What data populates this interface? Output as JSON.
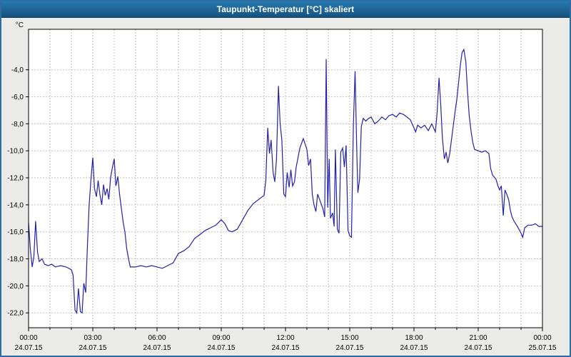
{
  "window": {
    "title": "Taupunkt-Temperatur [°C] skaliert"
  },
  "chart_data": {
    "type": "line",
    "title": "Taupunkt-Temperatur [°C] skaliert",
    "xlabel": "",
    "ylabel": "°C",
    "grid": true,
    "legend": "none",
    "ylim": [
      -23.1,
      -1.0
    ],
    "xlim_hours": [
      0,
      24
    ],
    "colors": {
      "line": "#2222aa",
      "grid": "#c3c3c3",
      "axis": "#000000",
      "text": "#000000",
      "plot_bg": "#ffffff"
    },
    "y_ticks": [
      {
        "value": -4,
        "label": "-4,0"
      },
      {
        "value": -6,
        "label": "-6,0"
      },
      {
        "value": -8,
        "label": "-8,0"
      },
      {
        "value": -10,
        "label": "-10,0"
      },
      {
        "value": -12,
        "label": "-12,0"
      },
      {
        "value": -14,
        "label": "-14,0"
      },
      {
        "value": -16,
        "label": "-16,0"
      },
      {
        "value": -18,
        "label": "-18,0"
      },
      {
        "value": -20,
        "label": "-20,0"
      },
      {
        "value": -22,
        "label": "-22,0"
      }
    ],
    "x_ticks": [
      {
        "hour": 0,
        "time": "00:00",
        "date": "24.07.15"
      },
      {
        "hour": 3,
        "time": "03:00",
        "date": "24.07.15"
      },
      {
        "hour": 6,
        "time": "06:00",
        "date": "24.07.15"
      },
      {
        "hour": 9,
        "time": "09:00",
        "date": "24.07.15"
      },
      {
        "hour": 12,
        "time": "12:00",
        "date": "24.07.15"
      },
      {
        "hour": 15,
        "time": "15:00",
        "date": "24.07.15"
      },
      {
        "hour": 18,
        "time": "18:00",
        "date": "24.07.15"
      },
      {
        "hour": 21,
        "time": "21:00",
        "date": "24.07.15"
      },
      {
        "hour": 24,
        "time": "00:00",
        "date": "25.07.15"
      }
    ],
    "series": [
      {
        "name": "Taupunkt-Temperatur",
        "points": [
          [
            0.0,
            -15.3
          ],
          [
            0.08,
            -17.2
          ],
          [
            0.17,
            -18.6
          ],
          [
            0.25,
            -17.8
          ],
          [
            0.33,
            -15.2
          ],
          [
            0.42,
            -17.5
          ],
          [
            0.5,
            -18.2
          ],
          [
            0.63,
            -18.0
          ],
          [
            0.75,
            -18.4
          ],
          [
            0.92,
            -18.5
          ],
          [
            1.08,
            -18.4
          ],
          [
            1.25,
            -18.6
          ],
          [
            1.5,
            -18.5
          ],
          [
            1.75,
            -18.6
          ],
          [
            2.0,
            -18.8
          ],
          [
            2.08,
            -19.2
          ],
          [
            2.17,
            -21.8
          ],
          [
            2.25,
            -22.0
          ],
          [
            2.33,
            -20.2
          ],
          [
            2.42,
            -21.9
          ],
          [
            2.5,
            -22.0
          ],
          [
            2.58,
            -19.8
          ],
          [
            2.67,
            -20.5
          ],
          [
            2.75,
            -17.0
          ],
          [
            2.83,
            -14.0
          ],
          [
            2.92,
            -12.0
          ],
          [
            3.0,
            -10.5
          ],
          [
            3.08,
            -12.8
          ],
          [
            3.17,
            -13.4
          ],
          [
            3.25,
            -12.2
          ],
          [
            3.33,
            -13.2
          ],
          [
            3.42,
            -14.0
          ],
          [
            3.5,
            -12.5
          ],
          [
            3.58,
            -13.3
          ],
          [
            3.67,
            -12.8
          ],
          [
            3.75,
            -13.6
          ],
          [
            3.83,
            -12.0
          ],
          [
            3.92,
            -11.2
          ],
          [
            4.0,
            -10.6
          ],
          [
            4.08,
            -12.6
          ],
          [
            4.17,
            -11.9
          ],
          [
            4.25,
            -13.2
          ],
          [
            4.33,
            -14.2
          ],
          [
            4.42,
            -15.3
          ],
          [
            4.5,
            -16.0
          ],
          [
            4.58,
            -17.2
          ],
          [
            4.67,
            -18.0
          ],
          [
            4.75,
            -18.6
          ],
          [
            5.0,
            -18.6
          ],
          [
            5.25,
            -18.5
          ],
          [
            5.5,
            -18.6
          ],
          [
            5.75,
            -18.5
          ],
          [
            6.0,
            -18.6
          ],
          [
            6.25,
            -18.7
          ],
          [
            6.5,
            -18.5
          ],
          [
            6.75,
            -18.3
          ],
          [
            7.0,
            -17.6
          ],
          [
            7.25,
            -17.4
          ],
          [
            7.5,
            -17.1
          ],
          [
            7.75,
            -16.5
          ],
          [
            8.0,
            -16.2
          ],
          [
            8.25,
            -15.9
          ],
          [
            8.5,
            -15.7
          ],
          [
            8.75,
            -15.5
          ],
          [
            9.0,
            -15.1
          ],
          [
            9.17,
            -15.4
          ],
          [
            9.33,
            -15.9
          ],
          [
            9.5,
            -16.0
          ],
          [
            9.75,
            -15.8
          ],
          [
            10.0,
            -15.1
          ],
          [
            10.25,
            -14.4
          ],
          [
            10.5,
            -13.9
          ],
          [
            10.75,
            -13.6
          ],
          [
            11.0,
            -13.3
          ],
          [
            11.08,
            -12.2
          ],
          [
            11.17,
            -8.3
          ],
          [
            11.25,
            -10.2
          ],
          [
            11.33,
            -9.2
          ],
          [
            11.42,
            -11.6
          ],
          [
            11.5,
            -12.3
          ],
          [
            11.58,
            -10.6
          ],
          [
            11.67,
            -5.2
          ],
          [
            11.75,
            -8.0
          ],
          [
            11.83,
            -9.2
          ],
          [
            11.92,
            -13.2
          ],
          [
            12.0,
            -13.4
          ],
          [
            12.08,
            -11.6
          ],
          [
            12.17,
            -12.7
          ],
          [
            12.25,
            -11.4
          ],
          [
            12.33,
            -12.6
          ],
          [
            12.42,
            -12.3
          ],
          [
            12.5,
            -11.2
          ],
          [
            12.67,
            -9.8
          ],
          [
            12.83,
            -9.1
          ],
          [
            13.0,
            -9.9
          ],
          [
            13.08,
            -11.1
          ],
          [
            13.17,
            -10.6
          ],
          [
            13.25,
            -13.2
          ],
          [
            13.33,
            -14.0
          ],
          [
            13.42,
            -14.5
          ],
          [
            13.5,
            -13.2
          ],
          [
            13.75,
            -14.3
          ],
          [
            13.83,
            -14.9
          ],
          [
            13.9,
            -3.2
          ],
          [
            13.97,
            -14.2
          ],
          [
            14.04,
            -10.6
          ],
          [
            14.1,
            -15.0
          ],
          [
            14.2,
            -14.6
          ],
          [
            14.27,
            -15.6
          ],
          [
            14.33,
            -9.9
          ],
          [
            14.42,
            -15.8
          ],
          [
            14.5,
            -16.1
          ],
          [
            14.58,
            -10.1
          ],
          [
            14.67,
            -9.8
          ],
          [
            14.75,
            -11.2
          ],
          [
            14.83,
            -9.6
          ],
          [
            14.92,
            -15.9
          ],
          [
            15.0,
            -16.3
          ],
          [
            15.08,
            -16.4
          ],
          [
            15.17,
            -8.1
          ],
          [
            15.25,
            -4.1
          ],
          [
            15.33,
            -10.1
          ],
          [
            15.38,
            -13.1
          ],
          [
            15.46,
            -12.1
          ],
          [
            15.54,
            -8.2
          ],
          [
            15.63,
            -7.6
          ],
          [
            15.75,
            -7.8
          ],
          [
            15.88,
            -7.6
          ],
          [
            16.0,
            -7.5
          ],
          [
            16.17,
            -8.0
          ],
          [
            16.33,
            -7.8
          ],
          [
            16.5,
            -7.5
          ],
          [
            16.67,
            -7.7
          ],
          [
            16.83,
            -7.4
          ],
          [
            17.0,
            -7.3
          ],
          [
            17.17,
            -7.5
          ],
          [
            17.33,
            -7.2
          ],
          [
            17.5,
            -7.3
          ],
          [
            17.67,
            -7.5
          ],
          [
            17.83,
            -7.7
          ],
          [
            18.0,
            -8.3
          ],
          [
            18.08,
            -8.6
          ],
          [
            18.17,
            -8.1
          ],
          [
            18.33,
            -8.3
          ],
          [
            18.5,
            -8.1
          ],
          [
            18.67,
            -8.5
          ],
          [
            18.83,
            -8.0
          ],
          [
            19.0,
            -8.6
          ],
          [
            19.08,
            -7.2
          ],
          [
            19.17,
            -4.6
          ],
          [
            19.25,
            -6.6
          ],
          [
            19.33,
            -9.1
          ],
          [
            19.42,
            -10.6
          ],
          [
            19.5,
            -10.1
          ],
          [
            19.58,
            -10.9
          ],
          [
            19.67,
            -10.2
          ],
          [
            19.75,
            -9.2
          ],
          [
            19.83,
            -8.2
          ],
          [
            19.92,
            -7.1
          ],
          [
            20.0,
            -6.2
          ],
          [
            20.08,
            -5.0
          ],
          [
            20.17,
            -3.6
          ],
          [
            20.25,
            -2.7
          ],
          [
            20.33,
            -2.5
          ],
          [
            20.42,
            -3.4
          ],
          [
            20.5,
            -5.6
          ],
          [
            20.58,
            -7.4
          ],
          [
            20.67,
            -8.6
          ],
          [
            20.75,
            -9.4
          ],
          [
            20.83,
            -9.9
          ],
          [
            21.0,
            -10.0
          ],
          [
            21.17,
            -10.1
          ],
          [
            21.33,
            -10.0
          ],
          [
            21.5,
            -10.2
          ],
          [
            21.58,
            -11.3
          ],
          [
            21.67,
            -11.8
          ],
          [
            21.83,
            -12.1
          ],
          [
            21.92,
            -12.6
          ],
          [
            22.0,
            -12.9
          ],
          [
            22.08,
            -12.6
          ],
          [
            22.17,
            -14.8
          ],
          [
            22.25,
            -12.9
          ],
          [
            22.33,
            -13.2
          ],
          [
            22.42,
            -13.6
          ],
          [
            22.5,
            -14.4
          ],
          [
            22.58,
            -14.9
          ],
          [
            22.67,
            -15.2
          ],
          [
            22.83,
            -15.6
          ],
          [
            23.0,
            -16.1
          ],
          [
            23.08,
            -16.4
          ],
          [
            23.17,
            -15.7
          ],
          [
            23.33,
            -15.5
          ],
          [
            23.5,
            -15.5
          ],
          [
            23.67,
            -15.4
          ],
          [
            23.83,
            -15.6
          ],
          [
            24.0,
            -15.6
          ]
        ]
      }
    ]
  }
}
